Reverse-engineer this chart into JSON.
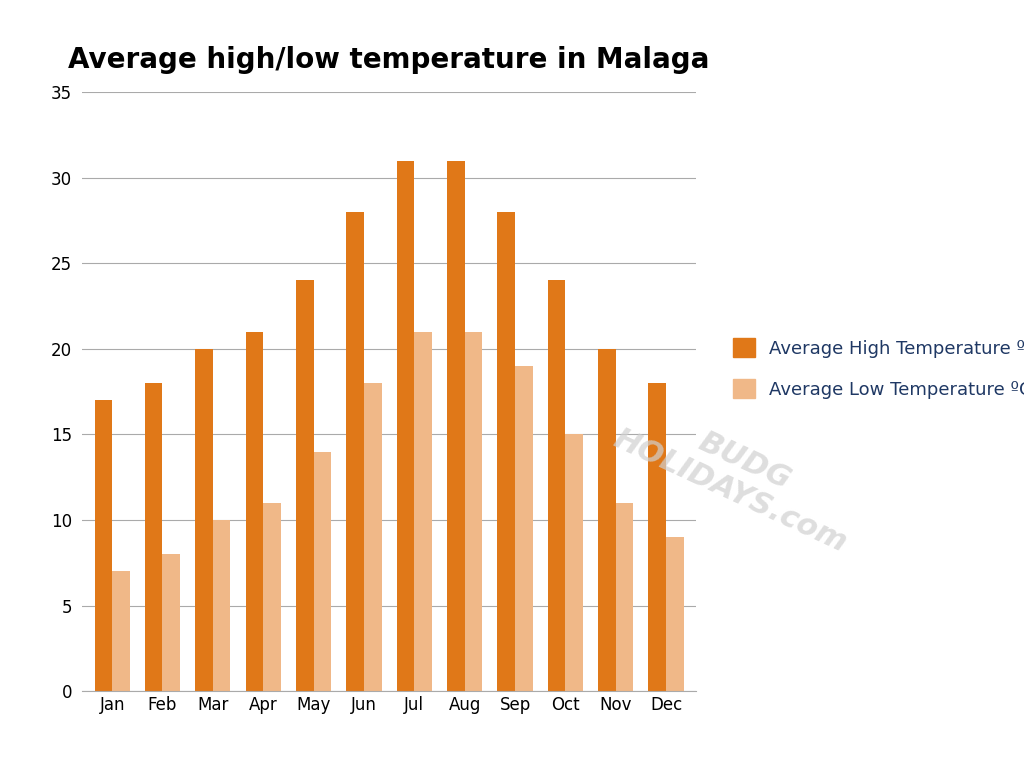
{
  "title": "Average high/low temperature in Malaga",
  "months": [
    "Jan",
    "Feb",
    "Mar",
    "Apr",
    "May",
    "Jun",
    "Jul",
    "Aug",
    "Sep",
    "Oct",
    "Nov",
    "Dec"
  ],
  "high_temps": [
    17,
    18,
    20,
    21,
    24,
    28,
    31,
    31,
    28,
    24,
    20,
    18
  ],
  "low_temps": [
    7,
    8,
    10,
    11,
    14,
    18,
    21,
    21,
    19,
    15,
    11,
    9
  ],
  "high_color": "#E07818",
  "low_color": "#F0B888",
  "ylim": [
    0,
    35
  ],
  "yticks": [
    0,
    5,
    10,
    15,
    20,
    25,
    30,
    35
  ],
  "legend_high": "Average High Temperature ºC",
  "legend_low": "Average Low Temperature ºC",
  "legend_text_color": "#1F3864",
  "background_color": "#FFFFFF",
  "title_fontsize": 20,
  "tick_fontsize": 12,
  "legend_fontsize": 13,
  "bar_width": 0.35,
  "grid_color": "#AAAAAA",
  "watermark_color": "#D0D0D0"
}
